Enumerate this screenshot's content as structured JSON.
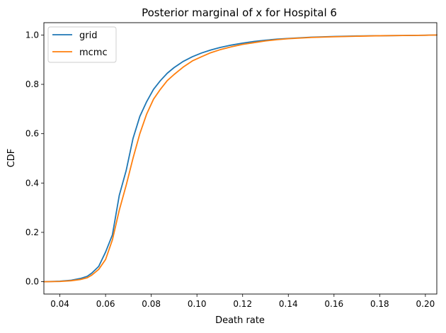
{
  "chart_data": {
    "type": "line",
    "title": "Posterior marginal of x for Hospital 6",
    "xlabel": "Death rate",
    "ylabel": "CDF",
    "xlim": [
      0.033,
      0.205
    ],
    "ylim": [
      -0.05,
      1.05
    ],
    "xticks": [
      0.04,
      0.06,
      0.08,
      0.1,
      0.12,
      0.14,
      0.16,
      0.18,
      0.2
    ],
    "xtick_labels": [
      "0.04",
      "0.06",
      "0.08",
      "0.10",
      "0.12",
      "0.14",
      "0.16",
      "0.18",
      "0.20"
    ],
    "yticks": [
      0.0,
      0.2,
      0.4,
      0.6,
      0.8,
      1.0
    ],
    "ytick_labels": [
      "0.0",
      "0.2",
      "0.4",
      "0.6",
      "0.8",
      "1.0"
    ],
    "grid": false,
    "legend_placement": "top-left",
    "series": [
      {
        "name": "grid",
        "color": "#1f77b4",
        "x": [
          0.033,
          0.04,
          0.045,
          0.049,
          0.052,
          0.054,
          0.057,
          0.06,
          0.063,
          0.066,
          0.069,
          0.072,
          0.075,
          0.078,
          0.081,
          0.084,
          0.087,
          0.09,
          0.094,
          0.098,
          0.102,
          0.106,
          0.11,
          0.115,
          0.12,
          0.125,
          0.13,
          0.135,
          0.14,
          0.15,
          0.16,
          0.17,
          0.18,
          0.19,
          0.2,
          0.205
        ],
        "y": [
          0.0,
          0.002,
          0.006,
          0.013,
          0.022,
          0.035,
          0.062,
          0.12,
          0.19,
          0.35,
          0.45,
          0.58,
          0.67,
          0.73,
          0.78,
          0.815,
          0.845,
          0.868,
          0.893,
          0.912,
          0.927,
          0.939,
          0.949,
          0.959,
          0.967,
          0.974,
          0.979,
          0.983,
          0.986,
          0.991,
          0.994,
          0.996,
          0.997,
          0.998,
          0.999,
          1.0
        ]
      },
      {
        "name": "mcmc",
        "color": "#ff7f0e",
        "x": [
          0.033,
          0.04,
          0.045,
          0.049,
          0.052,
          0.054,
          0.057,
          0.06,
          0.063,
          0.066,
          0.069,
          0.072,
          0.075,
          0.078,
          0.081,
          0.084,
          0.087,
          0.09,
          0.094,
          0.098,
          0.102,
          0.106,
          0.11,
          0.115,
          0.12,
          0.125,
          0.13,
          0.135,
          0.14,
          0.15,
          0.16,
          0.17,
          0.18,
          0.19,
          0.2,
          0.205
        ],
        "y": [
          0.0,
          0.001,
          0.004,
          0.009,
          0.016,
          0.027,
          0.05,
          0.09,
          0.17,
          0.29,
          0.39,
          0.5,
          0.6,
          0.68,
          0.74,
          0.78,
          0.815,
          0.84,
          0.87,
          0.895,
          0.912,
          0.928,
          0.94,
          0.952,
          0.962,
          0.969,
          0.976,
          0.981,
          0.985,
          0.99,
          0.993,
          0.995,
          0.997,
          0.998,
          0.999,
          1.0
        ]
      }
    ]
  }
}
